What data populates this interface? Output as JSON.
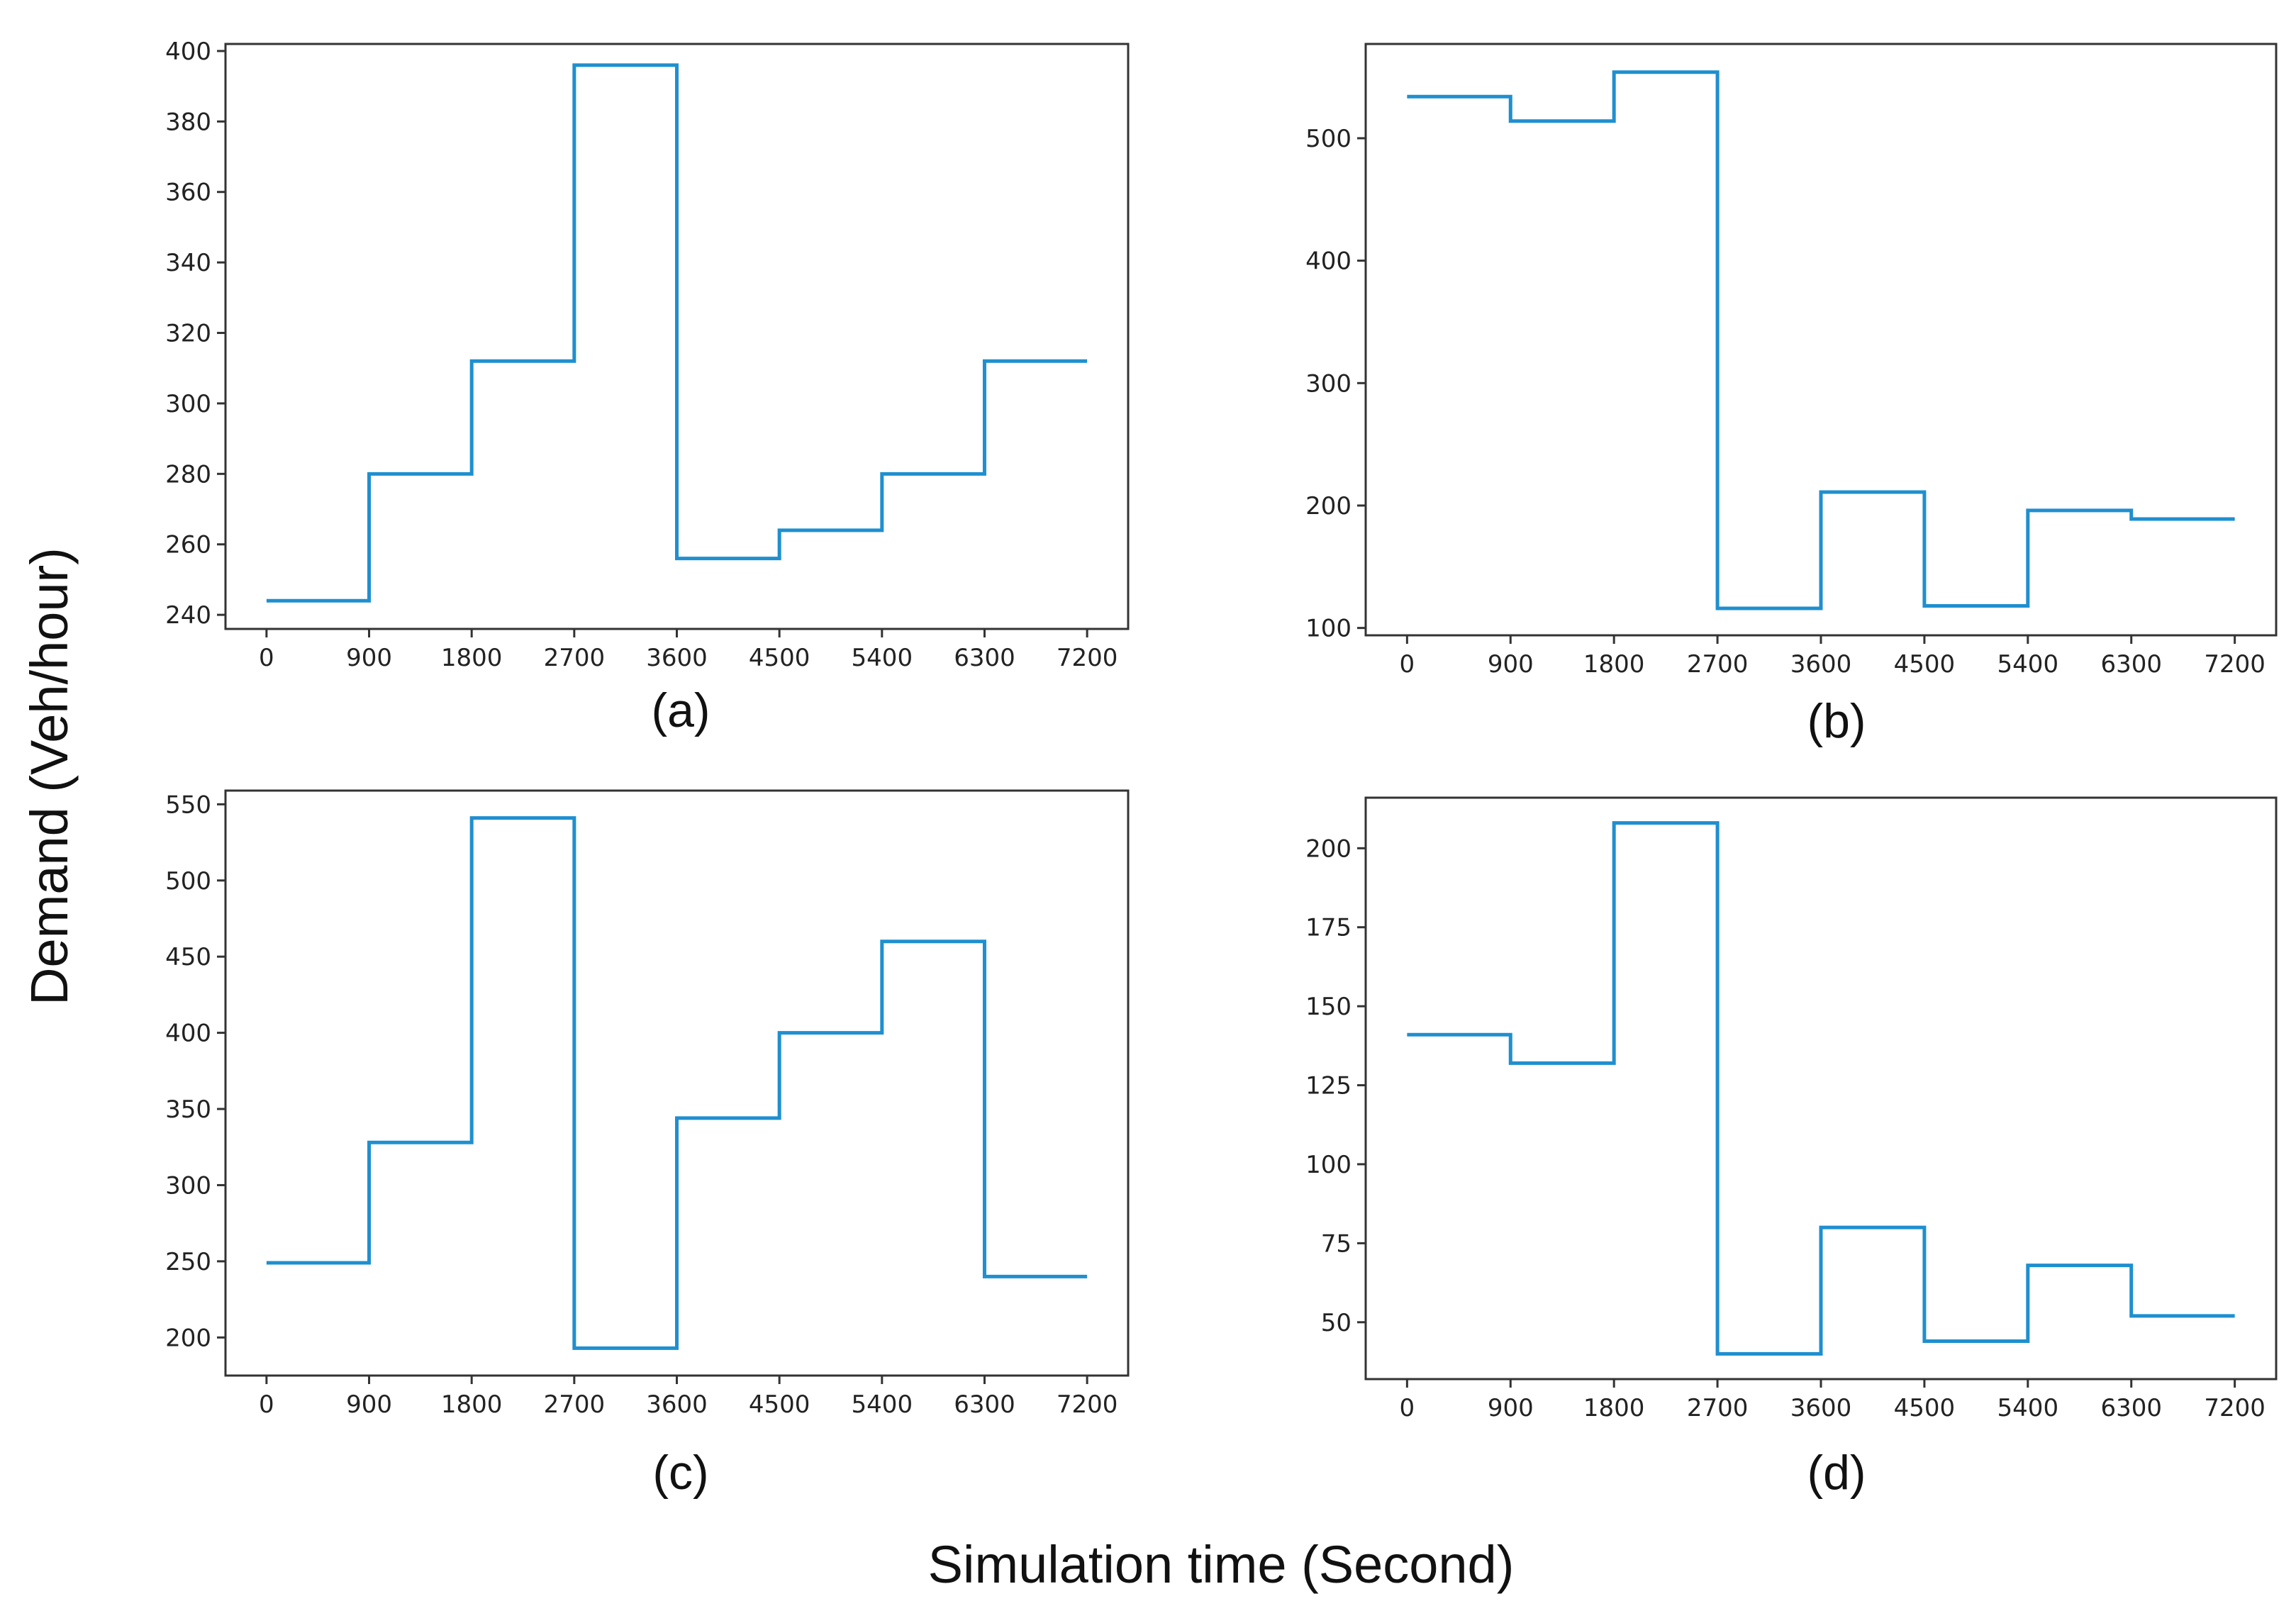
{
  "colors": {
    "series": "#1f8fcf",
    "frame": "#333333"
  },
  "figure": {
    "ylabel": "Demand (Veh/hour)",
    "xlabel": "Simulation time (Second)"
  },
  "chart_data": [
    {
      "type": "line",
      "step": "post",
      "panel_label": "(a)",
      "x": [
        0,
        900,
        1800,
        2700,
        3600,
        4500,
        5400,
        6300,
        7200
      ],
      "values": [
        244,
        280,
        312,
        396,
        256,
        264,
        280,
        312,
        312
      ],
      "xticks": [
        0,
        900,
        1800,
        2700,
        3600,
        4500,
        5400,
        6300,
        7200
      ],
      "yticks": [
        240,
        260,
        280,
        300,
        320,
        340,
        360,
        380,
        400
      ],
      "xlim": [
        -360,
        7560
      ],
      "ylim": [
        236,
        402
      ]
    },
    {
      "type": "line",
      "step": "post",
      "panel_label": "(b)",
      "x": [
        0,
        900,
        1800,
        2700,
        3600,
        4500,
        5400,
        6300,
        7200
      ],
      "values": [
        534,
        514,
        554,
        116,
        211,
        118,
        196,
        189,
        189
      ],
      "xticks": [
        0,
        900,
        1800,
        2700,
        3600,
        4500,
        5400,
        6300,
        7200
      ],
      "yticks": [
        100,
        200,
        300,
        400,
        500
      ],
      "xlim": [
        -360,
        7560
      ],
      "ylim": [
        94,
        577
      ]
    },
    {
      "type": "line",
      "step": "post",
      "panel_label": "(c)",
      "x": [
        0,
        900,
        1800,
        2700,
        3600,
        4500,
        5400,
        6300,
        7200
      ],
      "values": [
        249,
        328,
        541,
        193,
        344,
        400,
        460,
        240,
        240
      ],
      "xticks": [
        0,
        900,
        1800,
        2700,
        3600,
        4500,
        5400,
        6300,
        7200
      ],
      "yticks": [
        200,
        250,
        300,
        350,
        400,
        450,
        500,
        550
      ],
      "xlim": [
        -360,
        7560
      ],
      "ylim": [
        175,
        559
      ]
    },
    {
      "type": "line",
      "step": "post",
      "panel_label": "(d)",
      "x": [
        0,
        900,
        1800,
        2700,
        3600,
        4500,
        5400,
        6300,
        7200
      ],
      "values": [
        141,
        132,
        208,
        40,
        80,
        44,
        68,
        52,
        52
      ],
      "xticks": [
        0,
        900,
        1800,
        2700,
        3600,
        4500,
        5400,
        6300,
        7200
      ],
      "yticks": [
        50,
        75,
        100,
        125,
        150,
        175,
        200
      ],
      "xlim": [
        -360,
        7560
      ],
      "ylim": [
        32,
        216
      ]
    }
  ]
}
